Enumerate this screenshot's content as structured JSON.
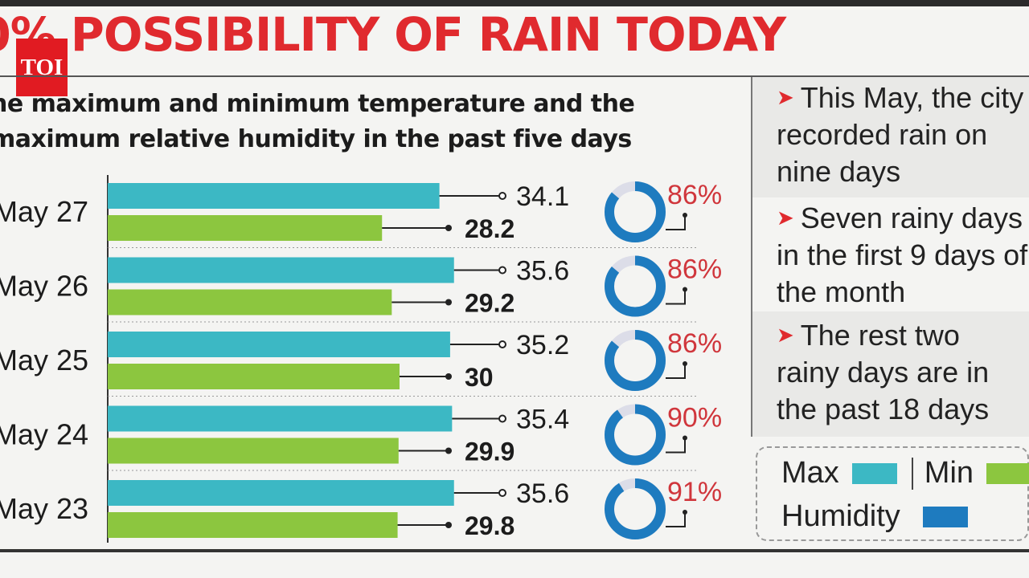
{
  "header": {
    "headline": "0% POSSIBILITY OF RAIN TODAY",
    "logo_text": "TOI",
    "subtitle_line1": "he maximum and minimum temperature and the",
    "subtitle_line2": "maximum relative humidity in the past five days"
  },
  "notes": [
    {
      "arrow": "➤",
      "lines": [
        "This May, the city",
        "recorded rain on",
        "nine days"
      ]
    },
    {
      "arrow": "➤",
      "lines": [
        "Seven rainy days",
        "in the first 9 days of",
        "the month"
      ]
    },
    {
      "arrow": "➤",
      "lines": [
        "The rest two",
        "rainy days are in",
        "the past 18 days"
      ]
    }
  ],
  "legend": {
    "max_label": "Max",
    "min_label": "Min",
    "humidity_label": "Humidity"
  },
  "colors": {
    "max": "#3cb8c4",
    "min": "#8cc63f",
    "humidity": "#1e7bbf",
    "humidity_track": "#dcdde8",
    "accent": "#e02a2e"
  },
  "chart_data": {
    "type": "bar",
    "orientation": "horizontal",
    "categories": [
      "May 27",
      "May 26",
      "May 25",
      "May 24",
      "May 23"
    ],
    "series": [
      {
        "name": "Max",
        "values": [
          34.1,
          35.6,
          35.2,
          35.4,
          35.6
        ],
        "labels": [
          "34.1",
          "35.6",
          "35.2",
          "35.4",
          "35.6"
        ]
      },
      {
        "name": "Min",
        "values": [
          28.2,
          29.2,
          30,
          29.9,
          29.8
        ],
        "labels": [
          "28.2",
          "29.2",
          "30",
          "29.9",
          "29.8"
        ]
      },
      {
        "name": "Humidity",
        "values": [
          86,
          86,
          86,
          90,
          91
        ],
        "labels": [
          "86%",
          "86%",
          "86%",
          "90%",
          "91%"
        ]
      }
    ],
    "title": "0% POSSIBILITY OF RAIN TODAY",
    "legend_position": "bottom-right"
  }
}
